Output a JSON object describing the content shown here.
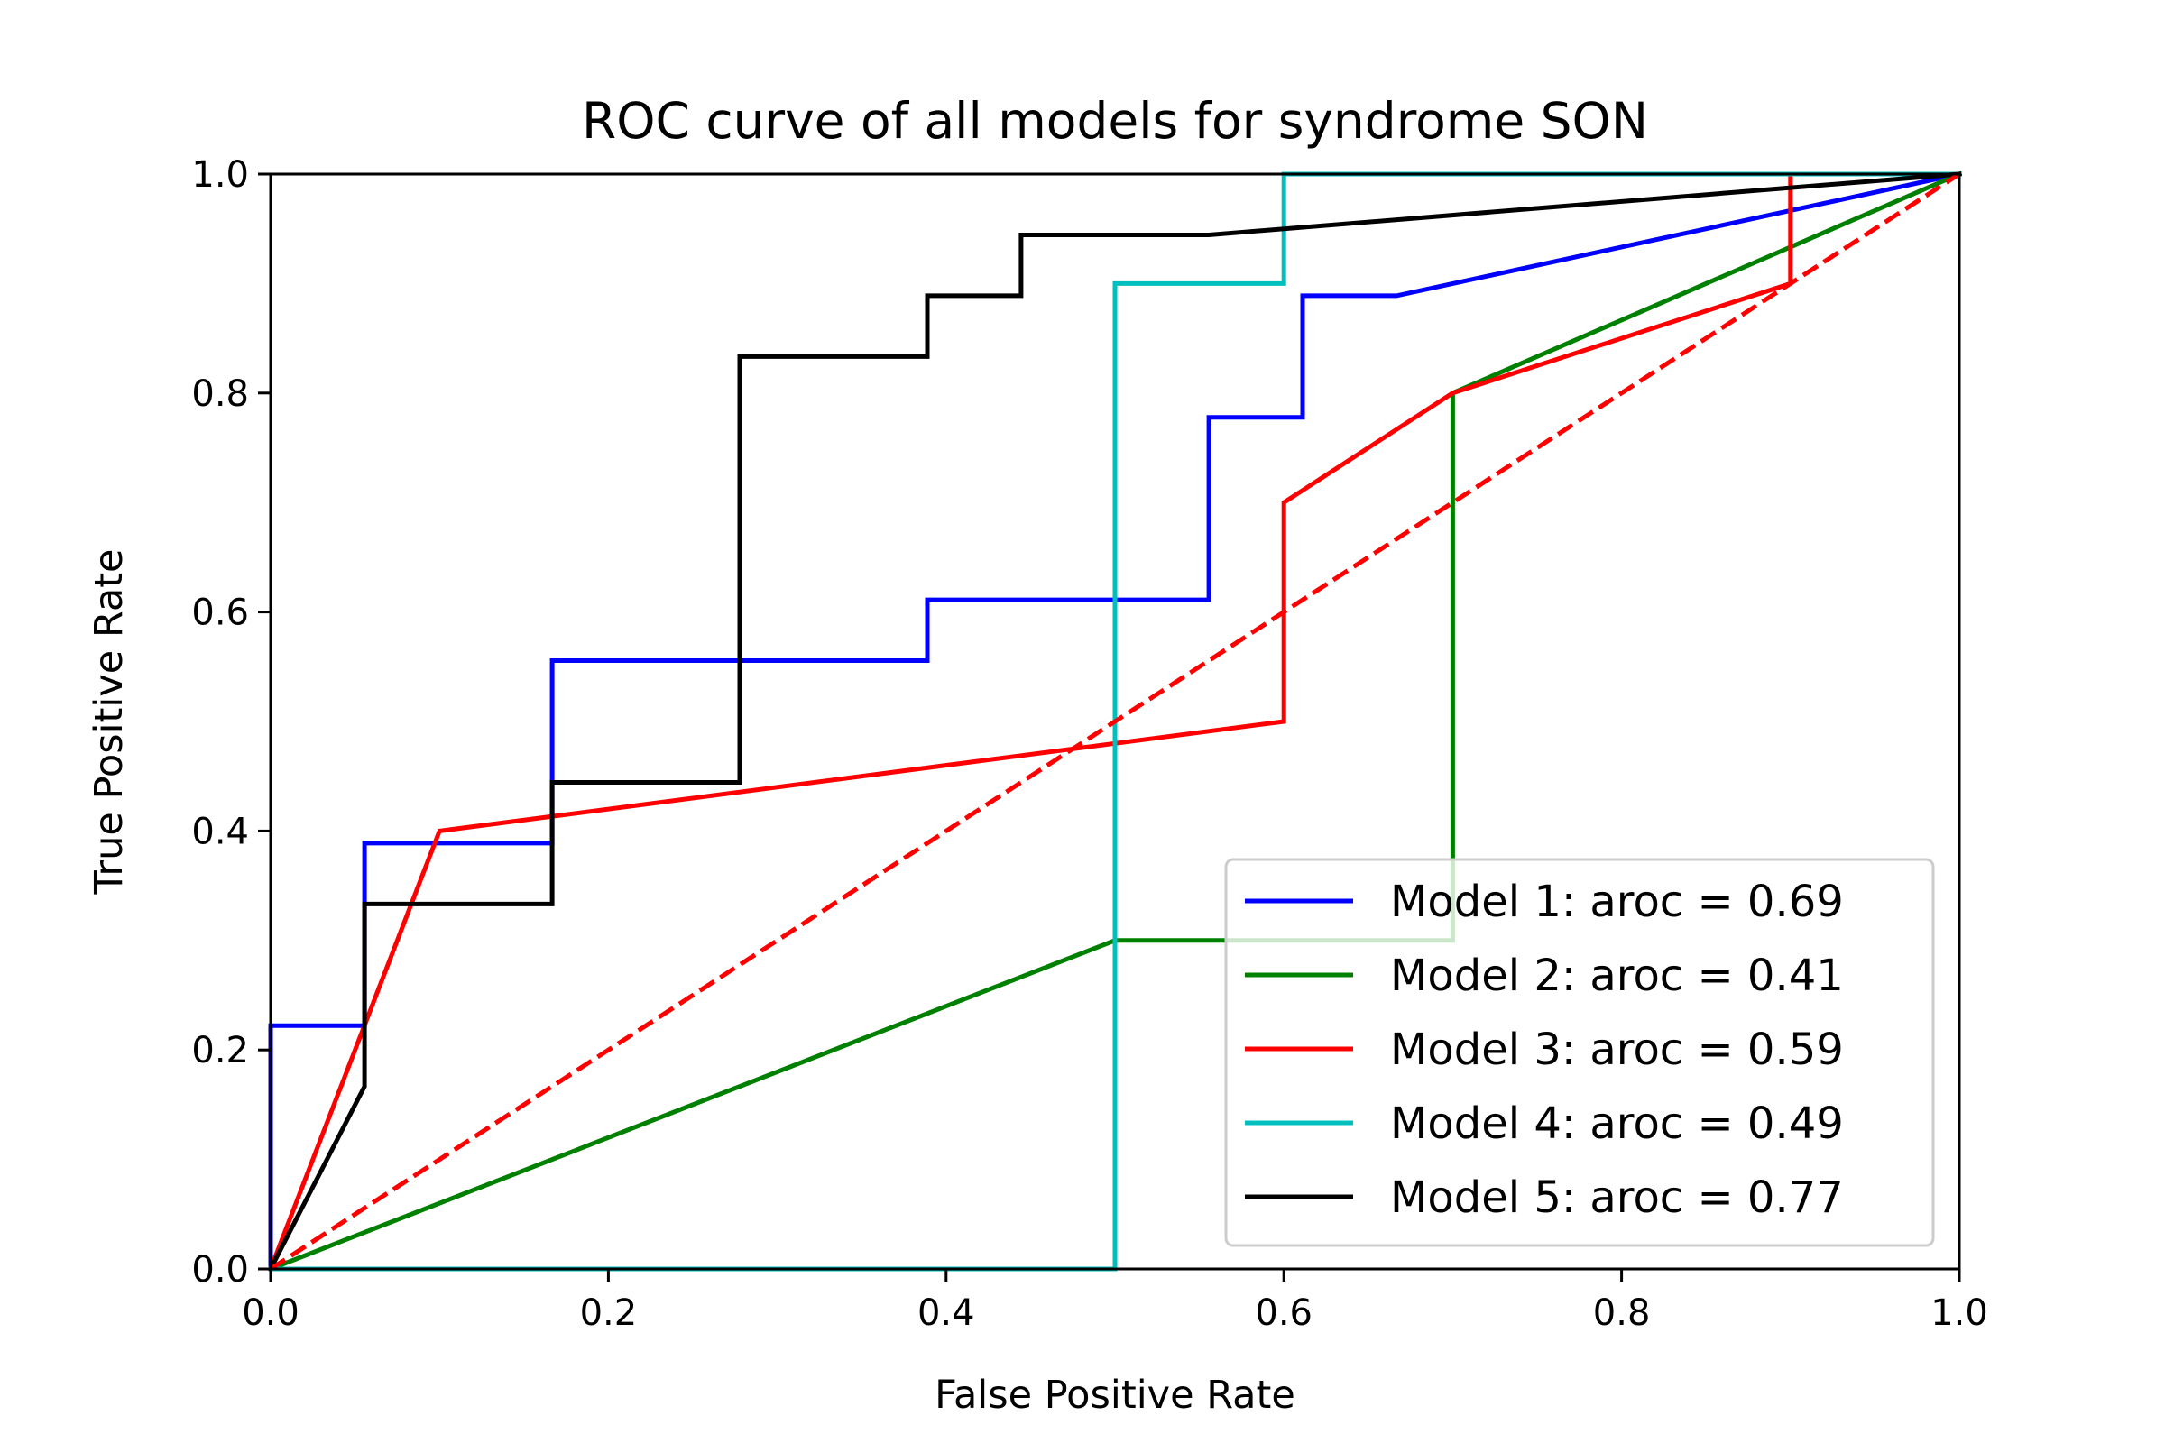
{
  "chart_data": {
    "type": "line",
    "title": "ROC curve of all models for syndrome SON",
    "xlabel": "False Positive Rate",
    "ylabel": "True Positive Rate",
    "xlim": [
      0.0,
      1.0
    ],
    "ylim": [
      0.0,
      1.0
    ],
    "xticks": [
      "0.0",
      "0.2",
      "0.4",
      "0.6",
      "0.8",
      "1.0"
    ],
    "yticks": [
      "0.0",
      "0.2",
      "0.4",
      "0.6",
      "0.8",
      "1.0"
    ],
    "grid": false,
    "legend_position": "lower-right",
    "series": [
      {
        "name": "Model 1: aroc = 0.69",
        "color": "#0000ff",
        "x": [
          0.0,
          0.0,
          0.0556,
          0.0556,
          0.1667,
          0.1667,
          0.3889,
          0.3889,
          0.5556,
          0.5556,
          0.6111,
          0.6111,
          0.6667,
          1.0
        ],
        "y": [
          0.0,
          0.2222,
          0.2222,
          0.3889,
          0.3889,
          0.5556,
          0.5556,
          0.6111,
          0.6111,
          0.7778,
          0.7778,
          0.8889,
          0.8889,
          1.0
        ]
      },
      {
        "name": "Model 2: aroc = 0.41",
        "color": "#008000",
        "x": [
          0.0,
          0.5,
          0.7,
          0.7,
          1.0
        ],
        "y": [
          0.0,
          0.3,
          0.3,
          0.8,
          1.0
        ]
      },
      {
        "name": "Model 3: aroc = 0.59",
        "color": "#ff0000",
        "x": [
          0.0,
          0.1,
          0.6,
          0.6,
          0.7,
          0.9,
          0.9,
          1.0
        ],
        "y": [
          0.0,
          0.4,
          0.5,
          0.7,
          0.8,
          0.9,
          1.0,
          1.0
        ]
      },
      {
        "name": "Model 4: aroc = 0.49",
        "color": "#00bfbf",
        "x": [
          0.0,
          0.5,
          0.5,
          0.6,
          0.6,
          1.0
        ],
        "y": [
          0.0,
          0.0,
          0.9,
          0.9,
          1.0,
          1.0
        ]
      },
      {
        "name": "Model 5: aroc = 0.77",
        "color": "#000000",
        "x": [
          0.0,
          0.0556,
          0.0556,
          0.1667,
          0.1667,
          0.2778,
          0.2778,
          0.3889,
          0.3889,
          0.4444,
          0.4444,
          0.5556,
          1.0
        ],
        "y": [
          0.0,
          0.1667,
          0.3333,
          0.3333,
          0.4444,
          0.4444,
          0.8333,
          0.8333,
          0.8889,
          0.8889,
          0.9444,
          0.9444,
          1.0
        ]
      }
    ],
    "reference_line": {
      "color": "#ff0000",
      "style": "dashed",
      "x": [
        0.0,
        1.0
      ],
      "y": [
        0.0,
        1.0
      ]
    }
  }
}
